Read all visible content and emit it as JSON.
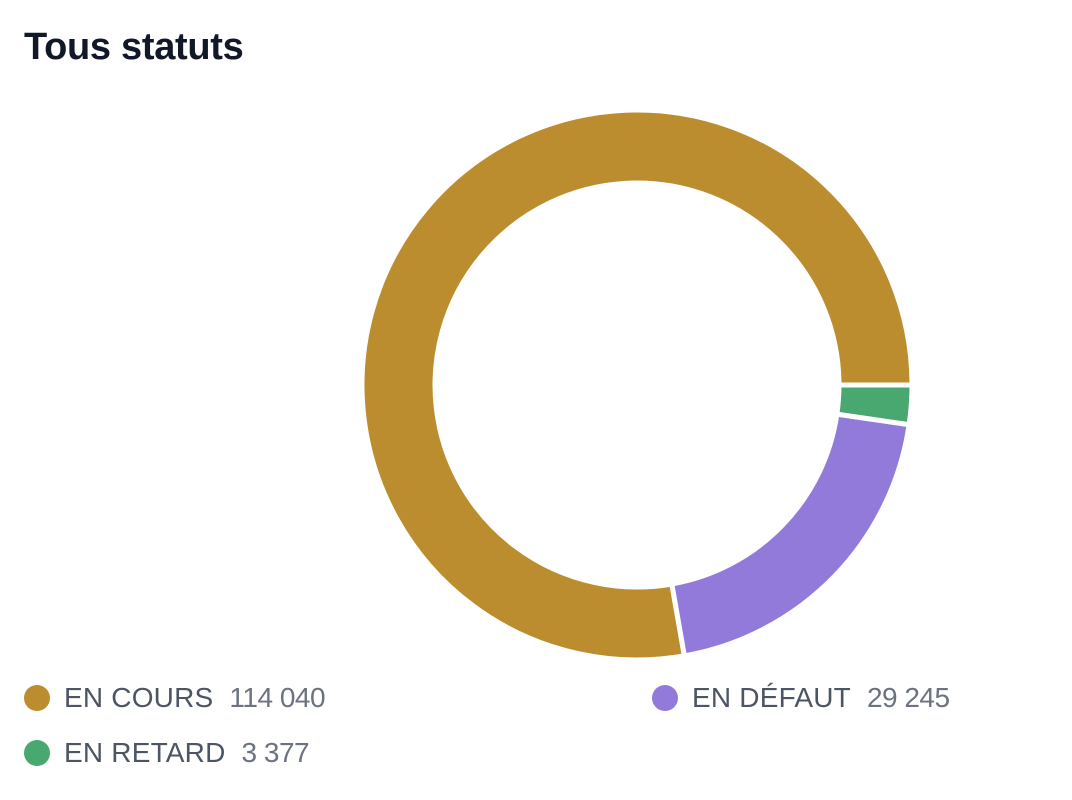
{
  "card": {
    "title": "Tous statuts"
  },
  "chart_data": {
    "type": "pie",
    "variant": "donut",
    "title": "Tous statuts",
    "slices": [
      {
        "label": "EN COURS",
        "value": 114040,
        "display": "114 040",
        "color": "#bc8d2e"
      },
      {
        "label": "EN DÉFAUT",
        "value": 29245,
        "display": "29 245",
        "color": "#927adb"
      },
      {
        "label": "EN RETARD",
        "value": 3377,
        "display": "3 377",
        "color": "#48a86f"
      }
    ],
    "legend_position": "bottom"
  }
}
